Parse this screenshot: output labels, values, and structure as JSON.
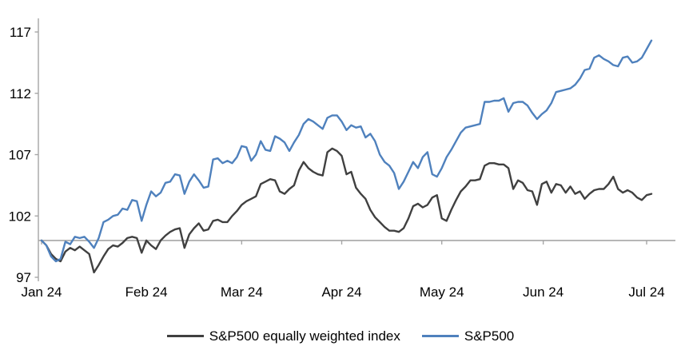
{
  "chart_data": {
    "type": "line",
    "title": "",
    "description": "S&P500 vs S&P500 equally weighted index, indexed to 100 at start of January 2024, daily values through early July 2024",
    "y_ticks": [
      97,
      102,
      107,
      112,
      117
    ],
    "ylim": [
      96.7,
      118.1
    ],
    "baseline_value": 100,
    "grid": "off",
    "legend_position": "bottom-center",
    "axis_color": "#a6a6a6",
    "x_tick_labels": [
      "Jan 24",
      "Feb 24",
      "Mar 24",
      "Apr 24",
      "May 24",
      "Jun 24",
      "Jul 24"
    ],
    "x_tick_days": [
      0,
      22,
      42,
      63,
      84,
      105.3,
      127
    ],
    "x_unit": "trading days since 1 Jan 2024",
    "series": [
      {
        "name": "S&P500 equally weighted index",
        "color": "#404040",
        "values": [
          100.0,
          99.6,
          98.9,
          98.5,
          98.3,
          99.1,
          99.4,
          99.2,
          99.5,
          99.2,
          98.9,
          97.4,
          98.0,
          98.7,
          99.3,
          99.6,
          99.5,
          99.8,
          100.2,
          100.3,
          100.2,
          99.0,
          100.0,
          99.6,
          99.3,
          100.0,
          100.4,
          100.7,
          100.9,
          101.0,
          99.4,
          100.5,
          101.0,
          101.4,
          100.8,
          100.9,
          101.6,
          101.7,
          101.5,
          101.5,
          102.0,
          102.4,
          102.9,
          103.2,
          103.4,
          103.6,
          104.6,
          104.8,
          105.0,
          104.9,
          104.0,
          103.8,
          104.2,
          104.5,
          105.7,
          106.4,
          105.9,
          105.6,
          105.4,
          105.3,
          107.2,
          107.5,
          107.3,
          106.9,
          105.4,
          105.6,
          104.3,
          103.8,
          103.4,
          102.5,
          101.9,
          101.5,
          101.1,
          100.8,
          100.8,
          100.7,
          101.0,
          101.8,
          102.8,
          103.0,
          102.7,
          102.9,
          103.5,
          103.7,
          101.8,
          101.6,
          102.5,
          103.3,
          104.0,
          104.4,
          104.9,
          104.9,
          105.0,
          106.1,
          106.3,
          106.3,
          106.2,
          106.2,
          105.9,
          104.2,
          104.9,
          104.7,
          104.1,
          104.0,
          102.9,
          104.6,
          104.8,
          103.9,
          104.6,
          104.5,
          103.9,
          104.4,
          103.8,
          104.0,
          103.4,
          103.8,
          104.1,
          104.2,
          104.2,
          104.6,
          105.2,
          104.2,
          103.9,
          104.1,
          103.9,
          103.5,
          103.3,
          103.7,
          103.8
        ]
      },
      {
        "name": "S&P500",
        "color": "#4f81bd",
        "values": [
          100.0,
          99.6,
          98.7,
          98.3,
          98.5,
          99.9,
          99.7,
          100.3,
          100.2,
          100.3,
          99.9,
          99.4,
          100.2,
          101.5,
          101.7,
          102.0,
          102.1,
          102.6,
          102.5,
          103.3,
          103.2,
          101.6,
          102.9,
          104.0,
          103.6,
          103.9,
          104.7,
          104.8,
          105.4,
          105.3,
          103.8,
          104.8,
          105.4,
          104.9,
          104.3,
          104.4,
          106.6,
          106.7,
          106.3,
          106.5,
          106.3,
          106.8,
          107.7,
          107.6,
          106.5,
          107.0,
          108.1,
          107.4,
          107.3,
          108.5,
          108.3,
          108.0,
          107.3,
          108.0,
          108.6,
          109.5,
          109.9,
          109.7,
          109.4,
          109.1,
          110.0,
          110.2,
          110.2,
          109.7,
          109.0,
          109.4,
          109.2,
          109.3,
          108.4,
          108.7,
          108.1,
          107.0,
          106.4,
          106.1,
          105.5,
          104.2,
          104.8,
          105.6,
          106.4,
          105.9,
          106.8,
          107.2,
          105.4,
          105.2,
          105.9,
          106.8,
          107.4,
          108.1,
          108.8,
          109.2,
          109.3,
          109.4,
          109.5,
          111.3,
          111.3,
          111.4,
          111.4,
          111.6,
          110.5,
          111.2,
          111.3,
          111.3,
          111.0,
          110.4,
          109.9,
          110.3,
          110.6,
          111.2,
          112.1,
          112.2,
          112.3,
          112.4,
          112.7,
          113.2,
          113.9,
          114.0,
          114.9,
          115.1,
          114.8,
          114.6,
          114.3,
          114.2,
          114.9,
          115.0,
          114.5,
          114.6,
          114.9,
          115.6,
          116.3
        ]
      }
    ]
  }
}
